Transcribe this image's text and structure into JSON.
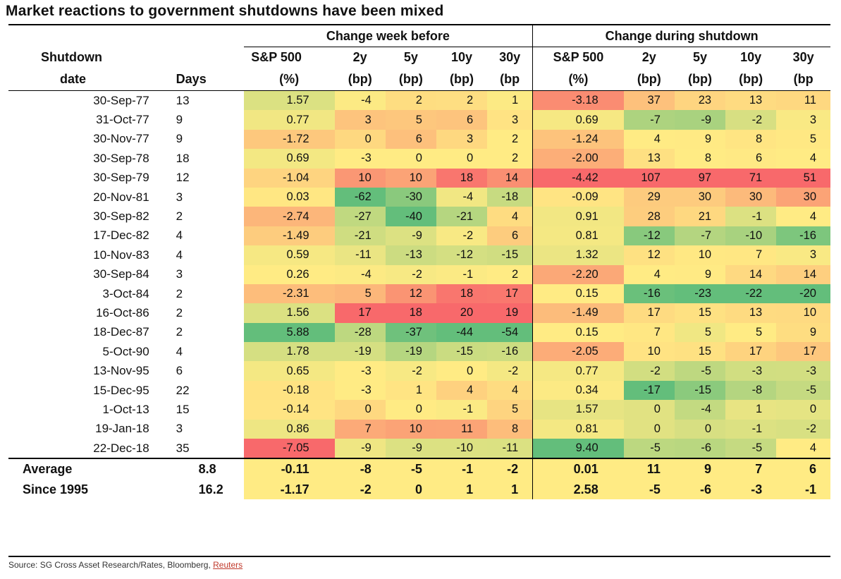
{
  "title": "Market reactions to government shutdowns have been mixed",
  "source": {
    "text": "Source: SG Cross Asset Research/Rates, Bloomberg, ",
    "link": "Reuters"
  },
  "header": {
    "group_before": "Change week before",
    "group_during": "Change during shutdown",
    "col_date_1": "Shutdown",
    "col_date_2": "date",
    "col_days": "Days",
    "metrics": [
      {
        "top": "S&P 500",
        "bottom": "(%)"
      },
      {
        "top": "2y",
        "bottom": "(bp)"
      },
      {
        "top": "5y",
        "bottom": "(bp)"
      },
      {
        "top": "10y",
        "bottom": "(bp)"
      },
      {
        "top": "30y",
        "bottom": "(bp"
      }
    ]
  },
  "colors": {
    "green": "#63be7b",
    "yellow": "#ffeb84",
    "red": "#f8696b"
  },
  "chart_data": {
    "type": "table",
    "columns": [
      "Shutdown date",
      "Days",
      "Change week before S&P 500 (%)",
      "Change week before 2y (bp)",
      "Change week before 5y (bp)",
      "Change week before 10y (bp)",
      "Change week before 30y (bp",
      "Change during shutdown S&P 500 (%)",
      "Change during shutdown 2y (bp)",
      "Change during shutdown 5y (bp)",
      "Change during shutdown 10y (bp)",
      "Change during shutdown 30y (bp"
    ],
    "rows": [
      {
        "date": "30-Sep-77",
        "days": "13",
        "before": [
          "1.57",
          "-4",
          "2",
          "2",
          "1"
        ],
        "during": [
          "-3.18",
          "37",
          "23",
          "13",
          "11"
        ]
      },
      {
        "date": "31-Oct-77",
        "days": "9",
        "before": [
          "0.77",
          "3",
          "5",
          "6",
          "3"
        ],
        "during": [
          "0.69",
          "-7",
          "-9",
          "-2",
          "3"
        ]
      },
      {
        "date": "30-Nov-77",
        "days": "9",
        "before": [
          "-1.72",
          "0",
          "6",
          "3",
          "2"
        ],
        "during": [
          "-1.24",
          "4",
          "9",
          "8",
          "5"
        ]
      },
      {
        "date": "30-Sep-78",
        "days": "18",
        "before": [
          "0.69",
          "-3",
          "0",
          "0",
          "2"
        ],
        "during": [
          "-2.00",
          "13",
          "8",
          "6",
          "4"
        ]
      },
      {
        "date": "30-Sep-79",
        "days": "12",
        "before": [
          "-1.04",
          "10",
          "10",
          "18",
          "14"
        ],
        "during": [
          "-4.42",
          "107",
          "97",
          "71",
          "51"
        ]
      },
      {
        "date": "20-Nov-81",
        "days": "3",
        "before": [
          "0.03",
          "-62",
          "-30",
          "-4",
          "-18"
        ],
        "during": [
          "-0.09",
          "29",
          "30",
          "30",
          "30"
        ]
      },
      {
        "date": "30-Sep-82",
        "days": "2",
        "before": [
          "-2.74",
          "-27",
          "-40",
          "-21",
          "4"
        ],
        "during": [
          "0.91",
          "28",
          "21",
          "-1",
          "4"
        ]
      },
      {
        "date": "17-Dec-82",
        "days": "4",
        "before": [
          "-1.49",
          "-21",
          "-9",
          "-2",
          "6"
        ],
        "during": [
          "0.81",
          "-12",
          "-7",
          "-10",
          "-16"
        ]
      },
      {
        "date": "10-Nov-83",
        "days": "4",
        "before": [
          "0.59",
          "-11",
          "-13",
          "-12",
          "-15"
        ],
        "during": [
          "1.32",
          "12",
          "10",
          "7",
          "3"
        ]
      },
      {
        "date": "30-Sep-84",
        "days": "3",
        "before": [
          "0.26",
          "-4",
          "-2",
          "-1",
          "2"
        ],
        "during": [
          "-2.20",
          "4",
          "9",
          "14",
          "14"
        ]
      },
      {
        "date": "3-Oct-84",
        "days": "2",
        "before": [
          "-2.31",
          "5",
          "12",
          "18",
          "17"
        ],
        "during": [
          "0.15",
          "-16",
          "-23",
          "-22",
          "-20"
        ]
      },
      {
        "date": "16-Oct-86",
        "days": "2",
        "before": [
          "1.56",
          "17",
          "18",
          "20",
          "19"
        ],
        "during": [
          "-1.49",
          "17",
          "15",
          "13",
          "10"
        ]
      },
      {
        "date": "18-Dec-87",
        "days": "2",
        "before": [
          "5.88",
          "-28",
          "-37",
          "-44",
          "-54"
        ],
        "during": [
          "0.15",
          "7",
          "5",
          "5",
          "9"
        ]
      },
      {
        "date": "5-Oct-90",
        "days": "4",
        "before": [
          "1.78",
          "-19",
          "-19",
          "-15",
          "-16"
        ],
        "during": [
          "-2.05",
          "10",
          "15",
          "17",
          "17"
        ]
      },
      {
        "date": "13-Nov-95",
        "days": "6",
        "before": [
          "0.65",
          "-3",
          "-2",
          "0",
          "-2"
        ],
        "during": [
          "0.77",
          "-2",
          "-5",
          "-3",
          "-3"
        ]
      },
      {
        "date": "15-Dec-95",
        "days": "22",
        "before": [
          "-0.18",
          "-3",
          "1",
          "4",
          "4"
        ],
        "during": [
          "0.34",
          "-17",
          "-15",
          "-8",
          "-5"
        ]
      },
      {
        "date": "1-Oct-13",
        "days": "15",
        "before": [
          "-0.14",
          "0",
          "0",
          "-1",
          "5"
        ],
        "during": [
          "1.57",
          "0",
          "-4",
          "1",
          "0"
        ]
      },
      {
        "date": "19-Jan-18",
        "days": "3",
        "before": [
          "0.86",
          "7",
          "10",
          "11",
          "8"
        ],
        "during": [
          "0.81",
          "0",
          "0",
          "-1",
          "-2"
        ]
      },
      {
        "date": "22-Dec-18",
        "days": "35",
        "before": [
          "-7.05",
          "-9",
          "-9",
          "-10",
          "-11"
        ],
        "during": [
          "9.40",
          "-5",
          "-6",
          "-5",
          "4"
        ]
      }
    ],
    "summary": [
      {
        "label": "Average",
        "days": "8.8",
        "before": [
          "-0.11",
          "-8",
          "-5",
          "-1",
          "-2"
        ],
        "during": [
          "0.01",
          "11",
          "9",
          "7",
          "6"
        ]
      },
      {
        "label": "Since 1995",
        "days": "16.2",
        "before": [
          "-1.17",
          "-2",
          "0",
          "1",
          "1"
        ],
        "during": [
          "2.58",
          "-5",
          "-6",
          "-3",
          "-1"
        ]
      }
    ]
  }
}
